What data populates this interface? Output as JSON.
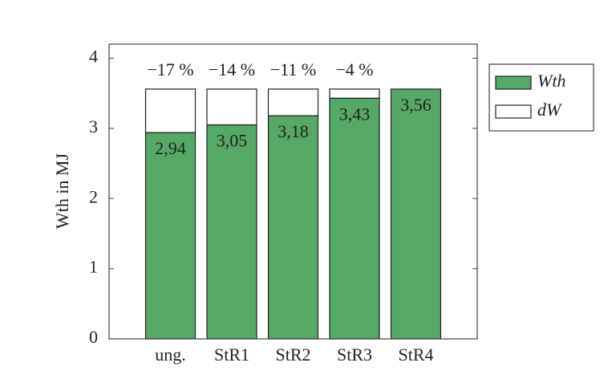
{
  "chart_data": {
    "type": "stacked-bar",
    "y_label": "Wth in MJ",
    "categories": [
      "ung.",
      "StR1",
      "StR2",
      "StR3",
      "StR4"
    ],
    "series": [
      {
        "name": "Wth",
        "color": "#55a865",
        "values": [
          2.94,
          3.05,
          3.18,
          3.43,
          3.56
        ],
        "value_labels": [
          "2,94",
          "3,05",
          "3,18",
          "3,43",
          "3,56"
        ]
      },
      {
        "name": "dW",
        "color": "#ffffff",
        "values": [
          0.62,
          0.51,
          0.38,
          0.13,
          0
        ],
        "value_labels": [
          "−17 %",
          "−14 %",
          "−11 %",
          "−4 %",
          null
        ]
      }
    ],
    "ylim": [
      0,
      4.2
    ],
    "yticks": [
      0,
      1,
      2,
      3,
      4
    ],
    "legend": "outside-right"
  }
}
